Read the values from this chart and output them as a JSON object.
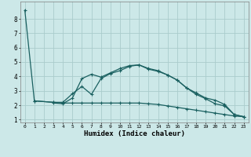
{
  "xlabel": "Humidex (Indice chaleur)",
  "bg_color": "#cce8e8",
  "grid_color": "#aacccc",
  "line_color": "#1a6060",
  "xlim": [
    -0.5,
    23.5
  ],
  "ylim": [
    0.8,
    9.2
  ],
  "xticks": [
    0,
    1,
    2,
    3,
    4,
    5,
    6,
    7,
    8,
    9,
    10,
    11,
    12,
    13,
    14,
    15,
    16,
    17,
    18,
    19,
    20,
    21,
    22,
    23
  ],
  "yticks": [
    1,
    2,
    3,
    4,
    5,
    6,
    7,
    8
  ],
  "line1_x": [
    0,
    1,
    3,
    4,
    5,
    6,
    7,
    8,
    9,
    10,
    11,
    12,
    13,
    14,
    15,
    16,
    17,
    18,
    19,
    20,
    21,
    22,
    23
  ],
  "line1_y": [
    8.6,
    2.3,
    2.2,
    2.15,
    2.15,
    2.15,
    2.15,
    2.15,
    2.15,
    2.15,
    2.15,
    2.15,
    2.1,
    2.05,
    1.95,
    1.85,
    1.75,
    1.65,
    1.55,
    1.45,
    1.35,
    1.25,
    1.2
  ],
  "line2_x": [
    1,
    3,
    4,
    5,
    6,
    7,
    8,
    9,
    10,
    11,
    12,
    13,
    14,
    15,
    16,
    17,
    18,
    19,
    20,
    21,
    22,
    23
  ],
  "line2_y": [
    2.3,
    2.2,
    2.2,
    2.8,
    3.3,
    2.75,
    3.85,
    4.2,
    4.4,
    4.7,
    4.8,
    4.55,
    4.4,
    4.1,
    3.75,
    3.2,
    2.85,
    2.5,
    2.35,
    2.05,
    1.35,
    1.2
  ],
  "line3_x": [
    3,
    4,
    5,
    6,
    7,
    8,
    9,
    10,
    11,
    12,
    13,
    14,
    15,
    16,
    17,
    18,
    19,
    20,
    21,
    22,
    23
  ],
  "line3_y": [
    2.15,
    2.1,
    2.5,
    3.85,
    4.15,
    3.95,
    4.25,
    4.55,
    4.75,
    4.8,
    4.5,
    4.35,
    4.1,
    3.75,
    3.2,
    2.75,
    2.45,
    2.1,
    1.95,
    1.35,
    1.2
  ]
}
